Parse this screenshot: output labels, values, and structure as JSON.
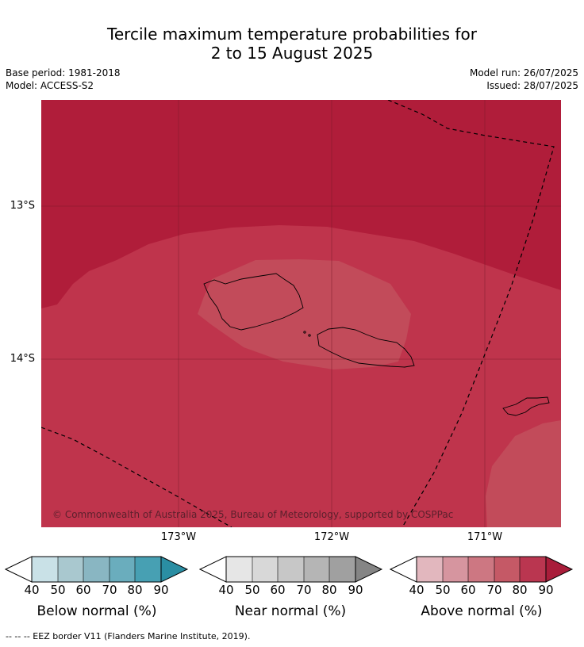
{
  "title": {
    "line1": "Tercile maximum temperature probabilities for",
    "line2": "2 to 15 August 2025"
  },
  "meta": {
    "base_period": "Base period: 1981-2018",
    "model": "Model: ACCESS-S2",
    "model_run": "Model run: 26/07/2025",
    "issued": "Issued: 28/07/2025"
  },
  "map": {
    "lat_labels": [
      "13°S",
      "14°S"
    ],
    "lon_labels": [
      "173°W",
      "172°W",
      "171°W"
    ],
    "copyright": "© Commonwealth of Australia 2025, Bureau of Meteorology, supported by COSPPac",
    "colors": {
      "above_80_90": "#b01d3a",
      "above_70_80": "#bf344c",
      "above_60_70": "#c24b5a"
    },
    "eez_line_style": "dashed black"
  },
  "colorbars": [
    {
      "label": "Below normal (%)",
      "ticks": [
        "40",
        "50",
        "60",
        "70",
        "80",
        "90"
      ],
      "colors": [
        "#c9e1e7",
        "#a9c8cf",
        "#89b6c2",
        "#6aadbd",
        "#47a0b3",
        "#2a8ea3"
      ]
    },
    {
      "label": "Near normal (%)",
      "ticks": [
        "40",
        "50",
        "60",
        "70",
        "80",
        "90"
      ],
      "colors": [
        "#e6e6e6",
        "#d8d8d8",
        "#c7c7c7",
        "#b5b5b5",
        "#a0a0a0",
        "#858585"
      ]
    },
    {
      "label": "Above normal (%)",
      "ticks": [
        "40",
        "50",
        "60",
        "70",
        "80",
        "90"
      ],
      "colors": [
        "#e2b7be",
        "#d6959f",
        "#cd7782",
        "#c55966",
        "#ba3650",
        "#a91d3a"
      ]
    }
  ],
  "footnote": "--  --  -- EEZ border V11 (Flanders Marine Institute, 2019)."
}
